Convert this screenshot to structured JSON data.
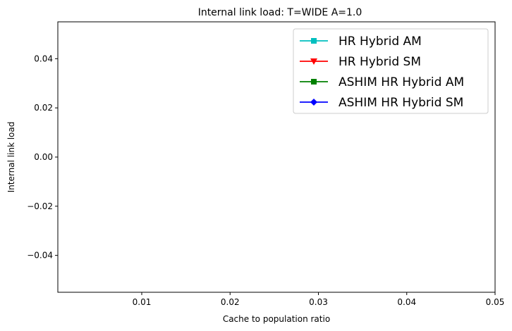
{
  "chart_data": {
    "type": "line",
    "title": "Internal link load: T=WIDE A=1.0",
    "xlabel": "Cache to population ratio",
    "ylabel": "Internal link load",
    "xlim": [
      0.0005,
      0.05
    ],
    "ylim": [
      -0.055,
      0.055
    ],
    "xticks": [
      0.01,
      0.02,
      0.03,
      0.04,
      0.05
    ],
    "xtick_labels": [
      "0.01",
      "0.02",
      "0.03",
      "0.04",
      "0.05"
    ],
    "yticks": [
      -0.04,
      -0.02,
      0.0,
      0.02,
      0.04
    ],
    "ytick_labels": [
      "−0.04",
      "−0.02",
      "0.00",
      "0.02",
      "0.04"
    ],
    "grid": false,
    "legend_position": "top-right",
    "series": [
      {
        "name": "HR Hybrid AM",
        "color": "#00bfbf",
        "marker": "square",
        "x": [],
        "y": []
      },
      {
        "name": "HR Hybrid SM",
        "color": "#ff0000",
        "marker": "triangle-down",
        "x": [],
        "y": []
      },
      {
        "name": "ASHIM HR Hybrid AM",
        "color": "#008000",
        "marker": "square",
        "x": [],
        "y": []
      },
      {
        "name": "ASHIM HR Hybrid SM",
        "color": "#0000ff",
        "marker": "diamond",
        "x": [],
        "y": []
      }
    ]
  }
}
